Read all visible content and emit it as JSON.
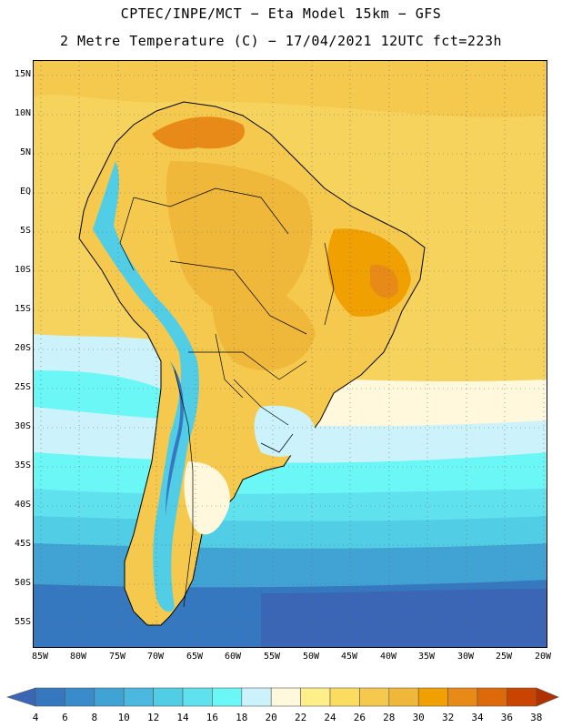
{
  "header": {
    "line1": "CPTEC/INPE/MCT −  Eta Model 15km − GFS",
    "line2": "2 Metre Temperature (C) − 17/04/2021 12UTC fct=223h"
  },
  "map": {
    "lat_labels": [
      "15N",
      "10N",
      "5N",
      "EQ",
      "5S",
      "10S",
      "15S",
      "20S",
      "25S",
      "30S",
      "35S",
      "40S",
      "45S",
      "50S",
      "55S"
    ],
    "lon_labels": [
      "85W",
      "80W",
      "75W",
      "70W",
      "65W",
      "60W",
      "55W",
      "50W",
      "45W",
      "40W",
      "35W",
      "30W",
      "25W",
      "20W"
    ],
    "gridlines": "dotted"
  },
  "colorbar": {
    "labels": [
      "4",
      "6",
      "8",
      "10",
      "12",
      "14",
      "16",
      "18",
      "20",
      "22",
      "24",
      "26",
      "28",
      "30",
      "32",
      "34",
      "36",
      "38"
    ],
    "colors": [
      "#3a66b5",
      "#3578c0",
      "#3a8bc9",
      "#41a2d4",
      "#4bb8df",
      "#52cde6",
      "#5fe2ee",
      "#6cf7f7",
      "#ccf2fb",
      "#fff8dc",
      "#ffef8a",
      "#f9dc60",
      "#f4c94e",
      "#f0b83a",
      "#f0a000",
      "#e88a18",
      "#dc6a0a",
      "#c84400",
      "#b03000"
    ]
  }
}
